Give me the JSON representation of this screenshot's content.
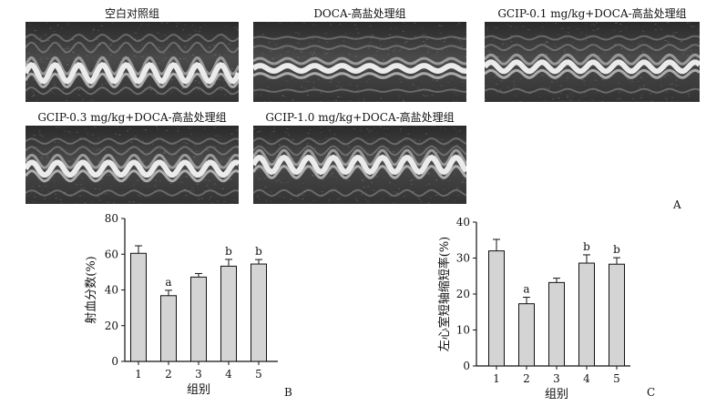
{
  "figure": {
    "panel_a_label": "A",
    "panel_b_label": "B",
    "panel_c_label": "C",
    "echo_titles": [
      "空白对照组",
      "DOCA-高盐处理组",
      "GCIP-0.1 mg/kg+DOCA-高盐处理组",
      "GCIP-0.3 mg/kg+DOCA-高盐处理组",
      "GCIP-1.0 mg/kg+DOCA-高盐处理组"
    ]
  },
  "chart_data": [
    {
      "type": "bar",
      "panel": "B",
      "categories": [
        "1",
        "2",
        "3",
        "4",
        "5"
      ],
      "values": [
        60.5,
        36.8,
        47.2,
        53.3,
        54.5
      ],
      "errors": [
        4.2,
        3.0,
        2.0,
        3.8,
        2.5
      ],
      "annotations": [
        "",
        "a",
        "",
        "b",
        "b"
      ],
      "xlabel": "组别",
      "ylabel": "射血分数(%)",
      "ylim": [
        0,
        80
      ],
      "yticks": [
        0,
        20,
        40,
        60,
        80
      ],
      "bar_color": "#d4d4d4"
    },
    {
      "type": "bar",
      "panel": "C",
      "categories": [
        "1",
        "2",
        "3",
        "4",
        "5"
      ],
      "values": [
        32.0,
        17.3,
        23.2,
        28.6,
        28.3
      ],
      "errors": [
        3.2,
        1.8,
        1.2,
        2.3,
        1.8
      ],
      "annotations": [
        "",
        "a",
        "",
        "b",
        "b"
      ],
      "xlabel": "组别",
      "ylabel": "左心室短轴缩短率(%)",
      "ylim": [
        0,
        40
      ],
      "yticks": [
        0,
        10,
        20,
        30,
        40
      ],
      "bar_color": "#d4d4d4"
    }
  ]
}
